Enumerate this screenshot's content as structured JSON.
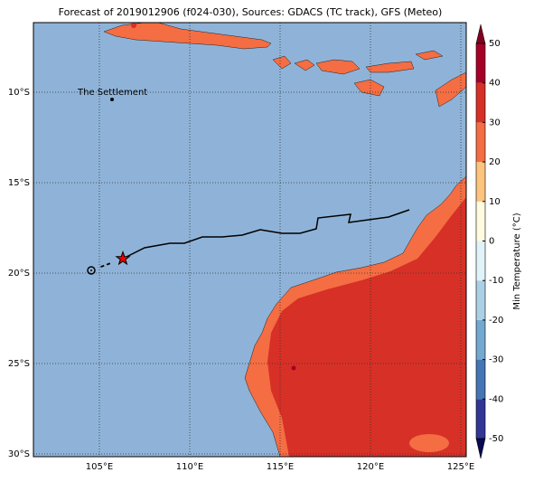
{
  "map": {
    "title": "Forecast of 2019012906 (f024-030), Sources: GDACS (TC track), GFS (Meteo)",
    "xlim": [
      101.35,
      125.3
    ],
    "ylim": [
      -30.15,
      -6.15
    ],
    "xticks": [
      {
        "value": 105,
        "label": "105°E"
      },
      {
        "value": 110,
        "label": "110°E"
      },
      {
        "value": 115,
        "label": "115°E"
      },
      {
        "value": 120,
        "label": "120°E"
      },
      {
        "value": 125,
        "label": "125°E"
      }
    ],
    "yticks": [
      {
        "value": -10,
        "label": "10°S"
      },
      {
        "value": -15,
        "label": "15°S"
      },
      {
        "value": -20,
        "label": "20°S"
      },
      {
        "value": -25,
        "label": "25°S"
      },
      {
        "value": -30,
        "label": "30°S"
      }
    ],
    "places": [
      {
        "name": "The Settlement",
        "lon": 105.7,
        "lat": -10.4
      }
    ],
    "origin": {
      "lon": 104.55,
      "lat": -19.85
    },
    "track": {
      "lon": [
        106.3,
        107.5,
        108.9,
        109.7,
        110.7,
        111.8,
        112.9,
        113.9,
        115.1,
        116.1,
        117.0,
        117.1,
        118.9,
        118.8,
        121.0,
        122.15
      ],
      "lat": [
        -19.2,
        -18.6,
        -18.35,
        -18.35,
        -18.0,
        -18.0,
        -17.9,
        -17.6,
        -17.8,
        -17.8,
        -17.55,
        -16.95,
        -16.75,
        -17.2,
        -16.9,
        -16.5
      ]
    },
    "colorbar": {
      "label": "Min Temperature (°C)",
      "lim": [
        -50,
        50
      ],
      "ticks": [
        -50,
        -40,
        -30,
        -20,
        -10,
        0,
        10,
        20,
        30,
        40,
        50
      ],
      "colors": [
        "#313695",
        "#4575b4",
        "#74a9cf",
        "#abd0e6",
        "#e0f3f8",
        "#fffbe0",
        "#fdc47d",
        "#f46d43",
        "#d73027",
        "#a50026"
      ]
    }
  }
}
